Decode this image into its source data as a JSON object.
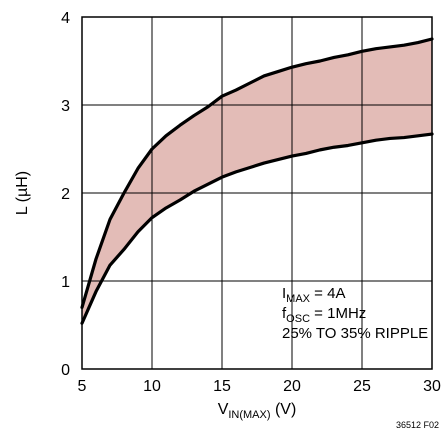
{
  "chart_data": {
    "type": "area",
    "xlabel": {
      "main": "V",
      "sub": "IN(MAX)",
      "unit": " (V)"
    },
    "ylabel": "L (µH)",
    "xlim": [
      5,
      30
    ],
    "ylim": [
      0,
      4
    ],
    "xticks": [
      "5",
      "10",
      "15",
      "20",
      "25",
      "30"
    ],
    "yticks": [
      "0",
      "1",
      "2",
      "3",
      "4"
    ],
    "grid": true,
    "band_color": "#e3bcb7",
    "line_color": "#000000",
    "series": [
      {
        "role": "upper",
        "x": [
          5,
          6,
          7,
          8,
          9,
          10,
          11,
          12,
          13,
          14,
          15,
          16,
          17,
          18,
          19,
          20,
          21,
          22,
          23,
          24,
          25,
          26,
          27,
          28,
          29,
          30
        ],
        "y": [
          0.7,
          1.25,
          1.7,
          2.0,
          2.28,
          2.5,
          2.65,
          2.77,
          2.88,
          2.98,
          3.1,
          3.17,
          3.25,
          3.33,
          3.38,
          3.43,
          3.47,
          3.5,
          3.54,
          3.57,
          3.61,
          3.64,
          3.66,
          3.68,
          3.71,
          3.75
        ]
      },
      {
        "role": "lower",
        "x": [
          5,
          6,
          7,
          8,
          9,
          10,
          11,
          12,
          13,
          14,
          15,
          16,
          17,
          18,
          19,
          20,
          21,
          22,
          23,
          24,
          25,
          26,
          27,
          28,
          29,
          30
        ],
        "y": [
          0.52,
          0.88,
          1.18,
          1.36,
          1.56,
          1.72,
          1.83,
          1.92,
          2.02,
          2.1,
          2.18,
          2.24,
          2.29,
          2.34,
          2.38,
          2.42,
          2.45,
          2.49,
          2.52,
          2.54,
          2.57,
          2.6,
          2.62,
          2.63,
          2.65,
          2.67
        ]
      }
    ],
    "annotation": {
      "line1_main": "I",
      "line1_sub": "MAX",
      "line1_rest": " = 4A",
      "line2_main": "f",
      "line2_sub": "OSC",
      "line2_rest": " = 1MHz",
      "line3": "25% TO 35% RIPPLE"
    },
    "figure_id": "36512 F02"
  }
}
